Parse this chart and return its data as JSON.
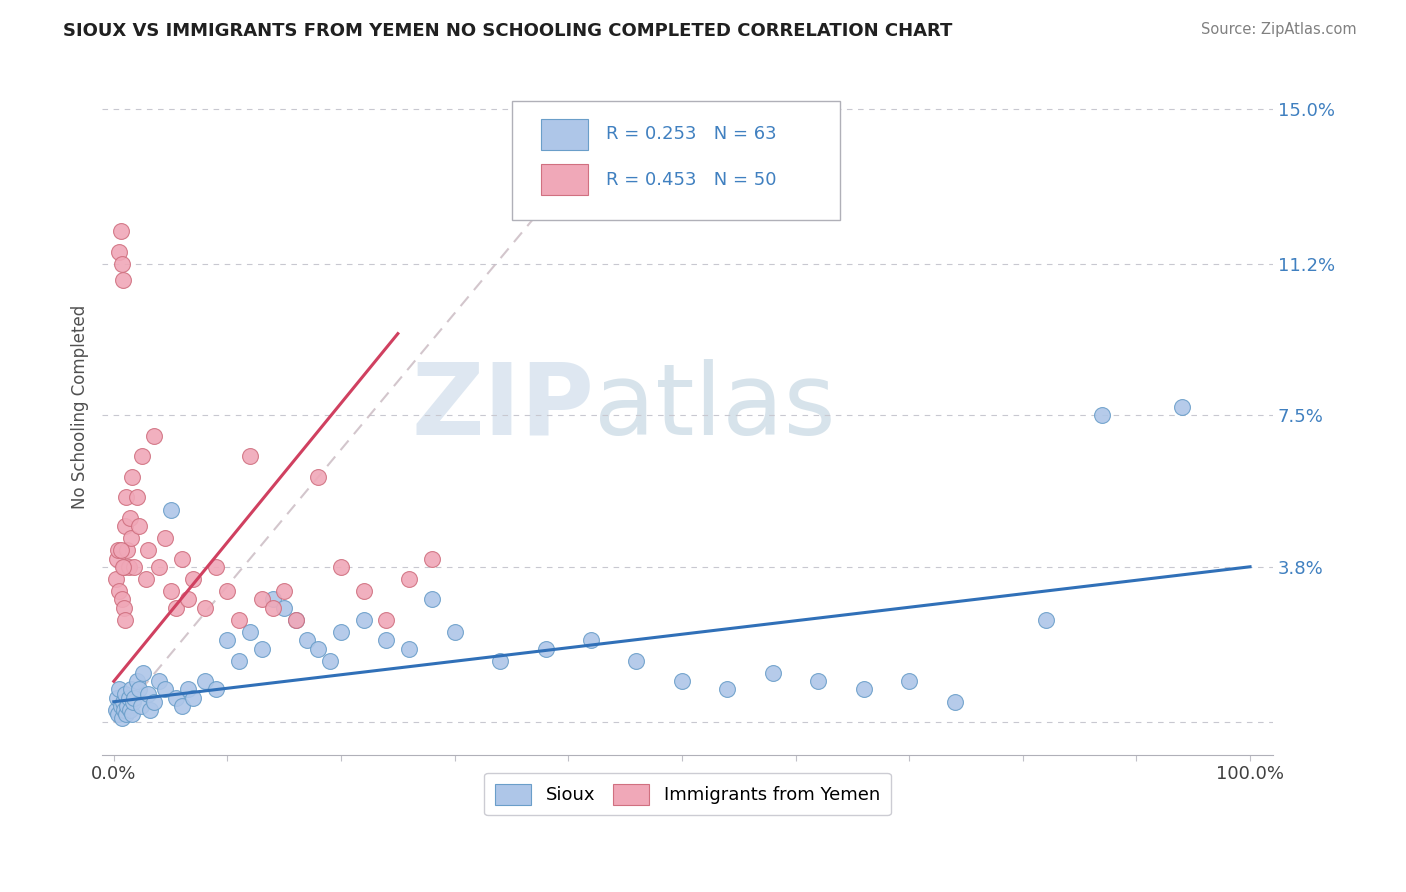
{
  "title": "SIOUX VS IMMIGRANTS FROM YEMEN NO SCHOOLING COMPLETED CORRELATION CHART",
  "source": "Source: ZipAtlas.com",
  "ylabel": "No Schooling Completed",
  "ytick_vals": [
    0.0,
    0.038,
    0.075,
    0.112,
    0.15
  ],
  "ytick_labels": [
    "",
    "3.8%",
    "7.5%",
    "11.2%",
    "15.0%"
  ],
  "xlim": [
    -0.01,
    1.02
  ],
  "ylim": [
    -0.008,
    0.162
  ],
  "sioux_color": "#aec6e8",
  "sioux_edge": "#6a9ec9",
  "yemen_color": "#f0a8b8",
  "yemen_edge": "#d07080",
  "sioux_line_color": "#3070b8",
  "yemen_line_color": "#d04060",
  "diagonal_color": "#c8b8c0",
  "watermark_zip": "ZIP",
  "watermark_atlas": "atlas",
  "legend_r1": "R = 0.253",
  "legend_n1": "N = 63",
  "legend_r2": "R = 0.453",
  "legend_n2": "N = 50",
  "sioux_x": [
    0.002,
    0.003,
    0.004,
    0.005,
    0.006,
    0.007,
    0.008,
    0.009,
    0.01,
    0.011,
    0.012,
    0.013,
    0.014,
    0.015,
    0.016,
    0.017,
    0.018,
    0.02,
    0.022,
    0.024,
    0.026,
    0.03,
    0.032,
    0.035,
    0.04,
    0.045,
    0.05,
    0.055,
    0.06,
    0.065,
    0.07,
    0.08,
    0.09,
    0.1,
    0.11,
    0.12,
    0.13,
    0.14,
    0.15,
    0.16,
    0.17,
    0.18,
    0.19,
    0.2,
    0.22,
    0.24,
    0.26,
    0.28,
    0.3,
    0.34,
    0.38,
    0.42,
    0.46,
    0.5,
    0.54,
    0.58,
    0.62,
    0.66,
    0.7,
    0.74,
    0.82,
    0.87,
    0.94
  ],
  "sioux_y": [
    0.003,
    0.006,
    0.002,
    0.008,
    0.004,
    0.001,
    0.005,
    0.003,
    0.007,
    0.002,
    0.004,
    0.006,
    0.003,
    0.008,
    0.002,
    0.005,
    0.006,
    0.01,
    0.008,
    0.004,
    0.012,
    0.007,
    0.003,
    0.005,
    0.01,
    0.008,
    0.052,
    0.006,
    0.004,
    0.008,
    0.006,
    0.01,
    0.008,
    0.02,
    0.015,
    0.022,
    0.018,
    0.03,
    0.028,
    0.025,
    0.02,
    0.018,
    0.015,
    0.022,
    0.025,
    0.02,
    0.018,
    0.03,
    0.022,
    0.015,
    0.018,
    0.02,
    0.015,
    0.01,
    0.008,
    0.012,
    0.01,
    0.008,
    0.01,
    0.005,
    0.025,
    0.075,
    0.077
  ],
  "yemen_x": [
    0.002,
    0.003,
    0.004,
    0.005,
    0.006,
    0.007,
    0.008,
    0.009,
    0.01,
    0.011,
    0.012,
    0.013,
    0.014,
    0.015,
    0.016,
    0.018,
    0.02,
    0.022,
    0.025,
    0.028,
    0.03,
    0.035,
    0.04,
    0.045,
    0.05,
    0.055,
    0.06,
    0.065,
    0.07,
    0.08,
    0.09,
    0.1,
    0.11,
    0.12,
    0.13,
    0.14,
    0.15,
    0.16,
    0.18,
    0.2,
    0.22,
    0.24,
    0.26,
    0.28,
    0.005,
    0.006,
    0.007,
    0.009,
    0.01,
    0.008
  ],
  "yemen_y": [
    0.035,
    0.04,
    0.042,
    0.115,
    0.12,
    0.112,
    0.108,
    0.038,
    0.048,
    0.055,
    0.042,
    0.038,
    0.05,
    0.045,
    0.06,
    0.038,
    0.055,
    0.048,
    0.065,
    0.035,
    0.042,
    0.07,
    0.038,
    0.045,
    0.032,
    0.028,
    0.04,
    0.03,
    0.035,
    0.028,
    0.038,
    0.032,
    0.025,
    0.065,
    0.03,
    0.028,
    0.032,
    0.025,
    0.06,
    0.038,
    0.032,
    0.025,
    0.035,
    0.04,
    0.032,
    0.042,
    0.03,
    0.028,
    0.025,
    0.038
  ],
  "sioux_trendline": [
    0.0,
    1.0,
    0.005,
    0.038
  ],
  "yemen_trendline": [
    0.0,
    0.25,
    0.01,
    0.095
  ]
}
